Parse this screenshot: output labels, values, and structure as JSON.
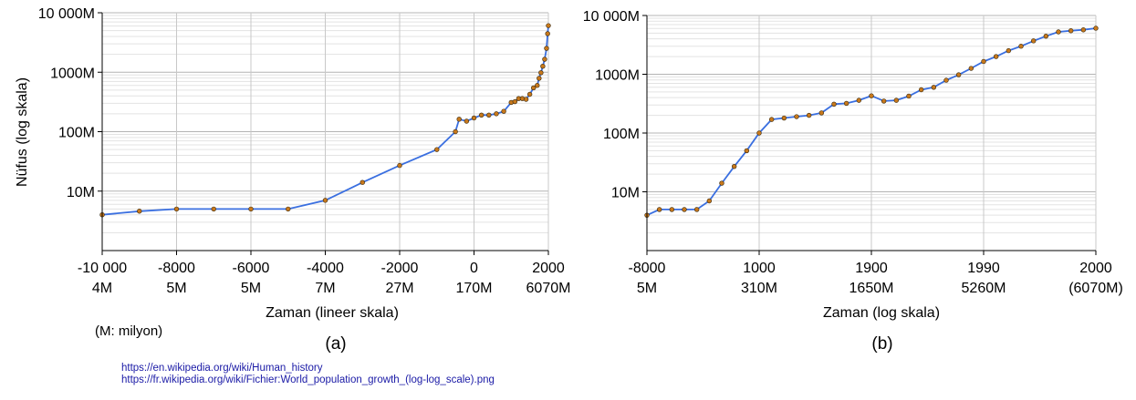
{
  "chart_data": [
    {
      "type": "line",
      "panel_label": "(a)",
      "xlabel": "Zaman (lineer skala)",
      "ylabel": "Nüfus (log skala)",
      "y_scale": "log",
      "ylim": [
        1,
        10000
      ],
      "xlim": [
        -10000,
        2000
      ],
      "grid": true,
      "y_ticks": [
        {
          "value": 10000,
          "label": "10 000M"
        },
        {
          "value": 1000,
          "label": "1000M"
        },
        {
          "value": 100,
          "label": "100M"
        },
        {
          "value": 10,
          "label": "10M"
        }
      ],
      "x_ticks": [
        {
          "value": -10000,
          "label": "-10 000",
          "sublabel": "4M"
        },
        {
          "value": -8000,
          "label": "-8000",
          "sublabel": "5M"
        },
        {
          "value": -6000,
          "label": "-6000",
          "sublabel": "5M"
        },
        {
          "value": -4000,
          "label": "-4000",
          "sublabel": "7M"
        },
        {
          "value": -2000,
          "label": "-2000",
          "sublabel": "27M"
        },
        {
          "value": 0,
          "label": "0",
          "sublabel": "170M"
        },
        {
          "value": 2000,
          "label": "2000",
          "sublabel": "6070M"
        }
      ],
      "line_color": "#3a6fe0",
      "marker_color": "#c8791c",
      "series": [
        {
          "x": [
            -10000,
            -9000,
            -8000,
            -7000,
            -6000,
            -5000,
            -4000,
            -3000,
            -2000,
            -1000,
            -500,
            -400,
            -200,
            0,
            200,
            400,
            600,
            800,
            1000,
            1100,
            1200,
            1300,
            1400,
            1500,
            1600,
            1700,
            1750,
            1800,
            1850,
            1900,
            1950,
            1980,
            2000
          ],
          "y": [
            4,
            4.6,
            5,
            5,
            5,
            5,
            7,
            14,
            27,
            50,
            100,
            162,
            150,
            170,
            190,
            190,
            200,
            220,
            310,
            320,
            360,
            360,
            350,
            425,
            545,
            600,
            790,
            980,
            1260,
            1650,
            2520,
            4450,
            6070
          ]
        }
      ]
    },
    {
      "type": "line",
      "panel_label": "(b)",
      "xlabel": "Zaman (log skala)",
      "y_scale": "log",
      "ylim": [
        1,
        10000
      ],
      "grid": true,
      "y_ticks": [
        {
          "value": 10000,
          "label": "10 000M"
        },
        {
          "value": 1000,
          "label": "1000M"
        },
        {
          "value": 100,
          "label": "100M"
        },
        {
          "value": 10,
          "label": "10M"
        }
      ],
      "x_ticks": [
        {
          "label": "-8000",
          "sublabel": "5M"
        },
        {
          "label": "1000",
          "sublabel": "310M"
        },
        {
          "label": "1900",
          "sublabel": "1650M"
        },
        {
          "label": "1990",
          "sublabel": "5260M"
        },
        {
          "label": "2000",
          "sublabel": "(6070M)"
        }
      ],
      "line_color": "#3a6fe0",
      "marker_color": "#c8791c",
      "series": [
        {
          "y": [
            4,
            5,
            5,
            5,
            5,
            7,
            14,
            27,
            50,
            100,
            170,
            180,
            190,
            200,
            220,
            310,
            320,
            360,
            430,
            350,
            360,
            425,
            545,
            600,
            790,
            980,
            1260,
            1650,
            2000,
            2520,
            3000,
            3700,
            4450,
            5260,
            5500,
            5700,
            6070
          ]
        }
      ]
    }
  ],
  "notes": {
    "units": "(M: milyon)",
    "sources": [
      "https://en.wikipedia.org/wiki/Human_history",
      "https://fr.wikipedia.org/wiki/Fichier:World_population_growth_(log-log_scale).png"
    ]
  }
}
